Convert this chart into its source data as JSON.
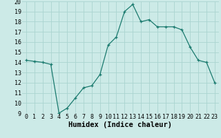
{
  "x": [
    0,
    1,
    2,
    3,
    4,
    5,
    6,
    7,
    8,
    9,
    10,
    11,
    12,
    13,
    14,
    15,
    16,
    17,
    18,
    19,
    20,
    21,
    22,
    23
  ],
  "y": [
    14.2,
    14.1,
    14.0,
    13.8,
    9.0,
    9.5,
    10.5,
    11.5,
    11.7,
    12.8,
    15.7,
    16.5,
    19.0,
    19.7,
    18.0,
    18.2,
    17.5,
    17.5,
    17.5,
    17.2,
    15.5,
    14.2,
    14.0,
    12.0
  ],
  "line_color": "#1a7a6e",
  "marker_color": "#1a7a6e",
  "bg_color": "#cceae7",
  "grid_color": "#aad4d0",
  "xlabel": "Humidex (Indice chaleur)",
  "xlabel_fontsize": 7.5,
  "tick_fontsize": 6.0,
  "ylim": [
    9,
    20
  ],
  "yticks": [
    9,
    10,
    11,
    12,
    13,
    14,
    15,
    16,
    17,
    18,
    19,
    20
  ],
  "xticks": [
    0,
    1,
    2,
    3,
    4,
    5,
    6,
    7,
    8,
    9,
    10,
    11,
    12,
    13,
    14,
    15,
    16,
    17,
    18,
    19,
    20,
    21,
    22,
    23
  ]
}
